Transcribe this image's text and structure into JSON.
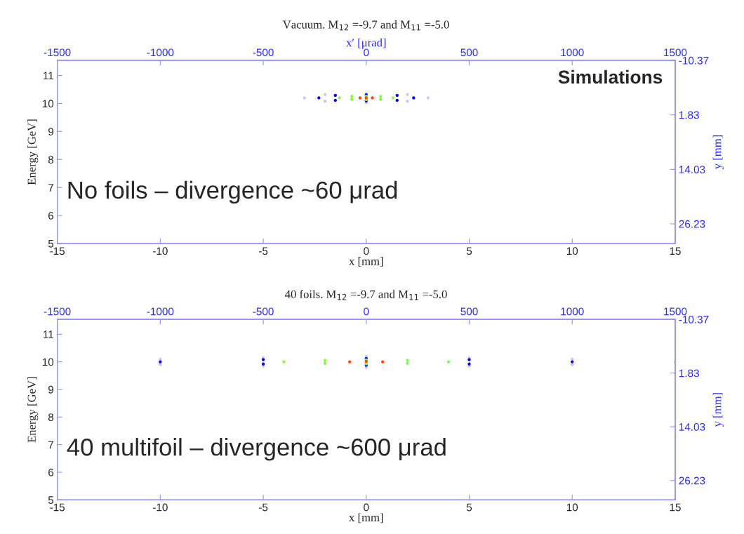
{
  "chart_data": [
    {
      "type": "scatter",
      "title": "Vacuum. M$_{12}$ =-9.7 and M$_{11}$ =-5.0",
      "xlabel": "x [mm]",
      "ylabel": "Energy [GeV]",
      "x2label": "x′ [μrad]",
      "y2label": "y [mm]",
      "xlim": [
        -15,
        15
      ],
      "xticks": [
        -15,
        -10,
        -5,
        0,
        5,
        10,
        15
      ],
      "ylim": [
        5,
        11.54
      ],
      "yticks": [
        5,
        6,
        7,
        8,
        9,
        10,
        11
      ],
      "x2lim": [
        -1500,
        1500
      ],
      "x2ticks": [
        -1500,
        -1000,
        -500,
        0,
        500,
        1000,
        1500
      ],
      "y2lim": [
        30.63,
        -10.37
      ],
      "y2ticks": [
        -10.37,
        1.83,
        14.03,
        26.23
      ],
      "grid": false,
      "legend": false,
      "marker": "circle",
      "annotations": [
        "Simulations",
        "No foils – divergence ~60 μrad"
      ],
      "series": [
        {
          "color": "#c8c8ff",
          "x": [
            -3,
            -2,
            0,
            2,
            3,
            2,
            0,
            -2
          ],
          "values": [
            10.2,
            10.32,
            10.36,
            10.32,
            10.2,
            10.08,
            10.04,
            10.08
          ]
        },
        {
          "color": "#0000ff",
          "x": [
            -2.3,
            -1.5,
            0,
            1.5,
            2.3,
            1.5,
            0,
            -1.5
          ],
          "values": [
            10.2,
            10.29,
            10.31,
            10.29,
            10.2,
            10.11,
            10.09,
            10.11
          ]
        },
        {
          "color": "#80ff40",
          "x": [
            -1.3,
            -0.7,
            0,
            0.7,
            1.3,
            0.7,
            0,
            -0.7
          ],
          "values": [
            10.2,
            10.25,
            10.26,
            10.25,
            10.2,
            10.15,
            10.14,
            10.15
          ]
        },
        {
          "color": "#ff4000",
          "x": [
            -0.3,
            0,
            0.3
          ],
          "values": [
            10.2,
            10.2,
            10.2
          ]
        }
      ]
    },
    {
      "type": "scatter",
      "title": "40 foils. M$_{12}$ =-9.7 and M$_{11}$ =-5.0",
      "xlabel": "x [mm]",
      "ylabel": "Energy [GeV]",
      "y2label": "y [mm]",
      "xlim": [
        -15,
        15
      ],
      "xticks": [
        -15,
        -10,
        -5,
        0,
        5,
        10,
        15
      ],
      "ylim": [
        5,
        11.54
      ],
      "yticks": [
        5,
        6,
        7,
        8,
        9,
        10,
        11
      ],
      "x2lim": [
        -1500,
        1500
      ],
      "x2ticks": [
        -1500,
        -1000,
        -500,
        0,
        500,
        1000,
        1500
      ],
      "y2lim": [
        30.63,
        -10.37
      ],
      "y2ticks": [
        -10.37,
        1.83,
        14.03,
        26.23
      ],
      "grid": false,
      "legend": false,
      "marker": "circle",
      "annotations": [
        "40 multifoil – divergence ~600 μrad"
      ],
      "series": [
        {
          "color": "#c8c8ff",
          "x": [
            -15,
            -10,
            -5,
            0,
            5,
            10,
            15,
            10,
            5,
            0,
            -5,
            -10
          ],
          "values": [
            10,
            10.1,
            10.15,
            10.2,
            10.15,
            10.1,
            10,
            9.9,
            9.85,
            9.8,
            9.85,
            9.9
          ]
        },
        {
          "color": "#0000ff",
          "x": [
            -10,
            -5,
            0,
            5,
            10,
            5,
            0,
            -5
          ],
          "values": [
            10,
            10.08,
            10.12,
            10.08,
            10,
            9.92,
            9.88,
            9.92
          ]
        },
        {
          "color": "#80ff40",
          "x": [
            -4,
            -2,
            0,
            2,
            4,
            2,
            0,
            -2
          ],
          "values": [
            10,
            10.05,
            10.07,
            10.05,
            10,
            9.95,
            9.93,
            9.95
          ]
        },
        {
          "color": "#ff4000",
          "x": [
            -0.8,
            0,
            0.8
          ],
          "values": [
            10,
            10.02,
            10
          ]
        }
      ]
    }
  ]
}
